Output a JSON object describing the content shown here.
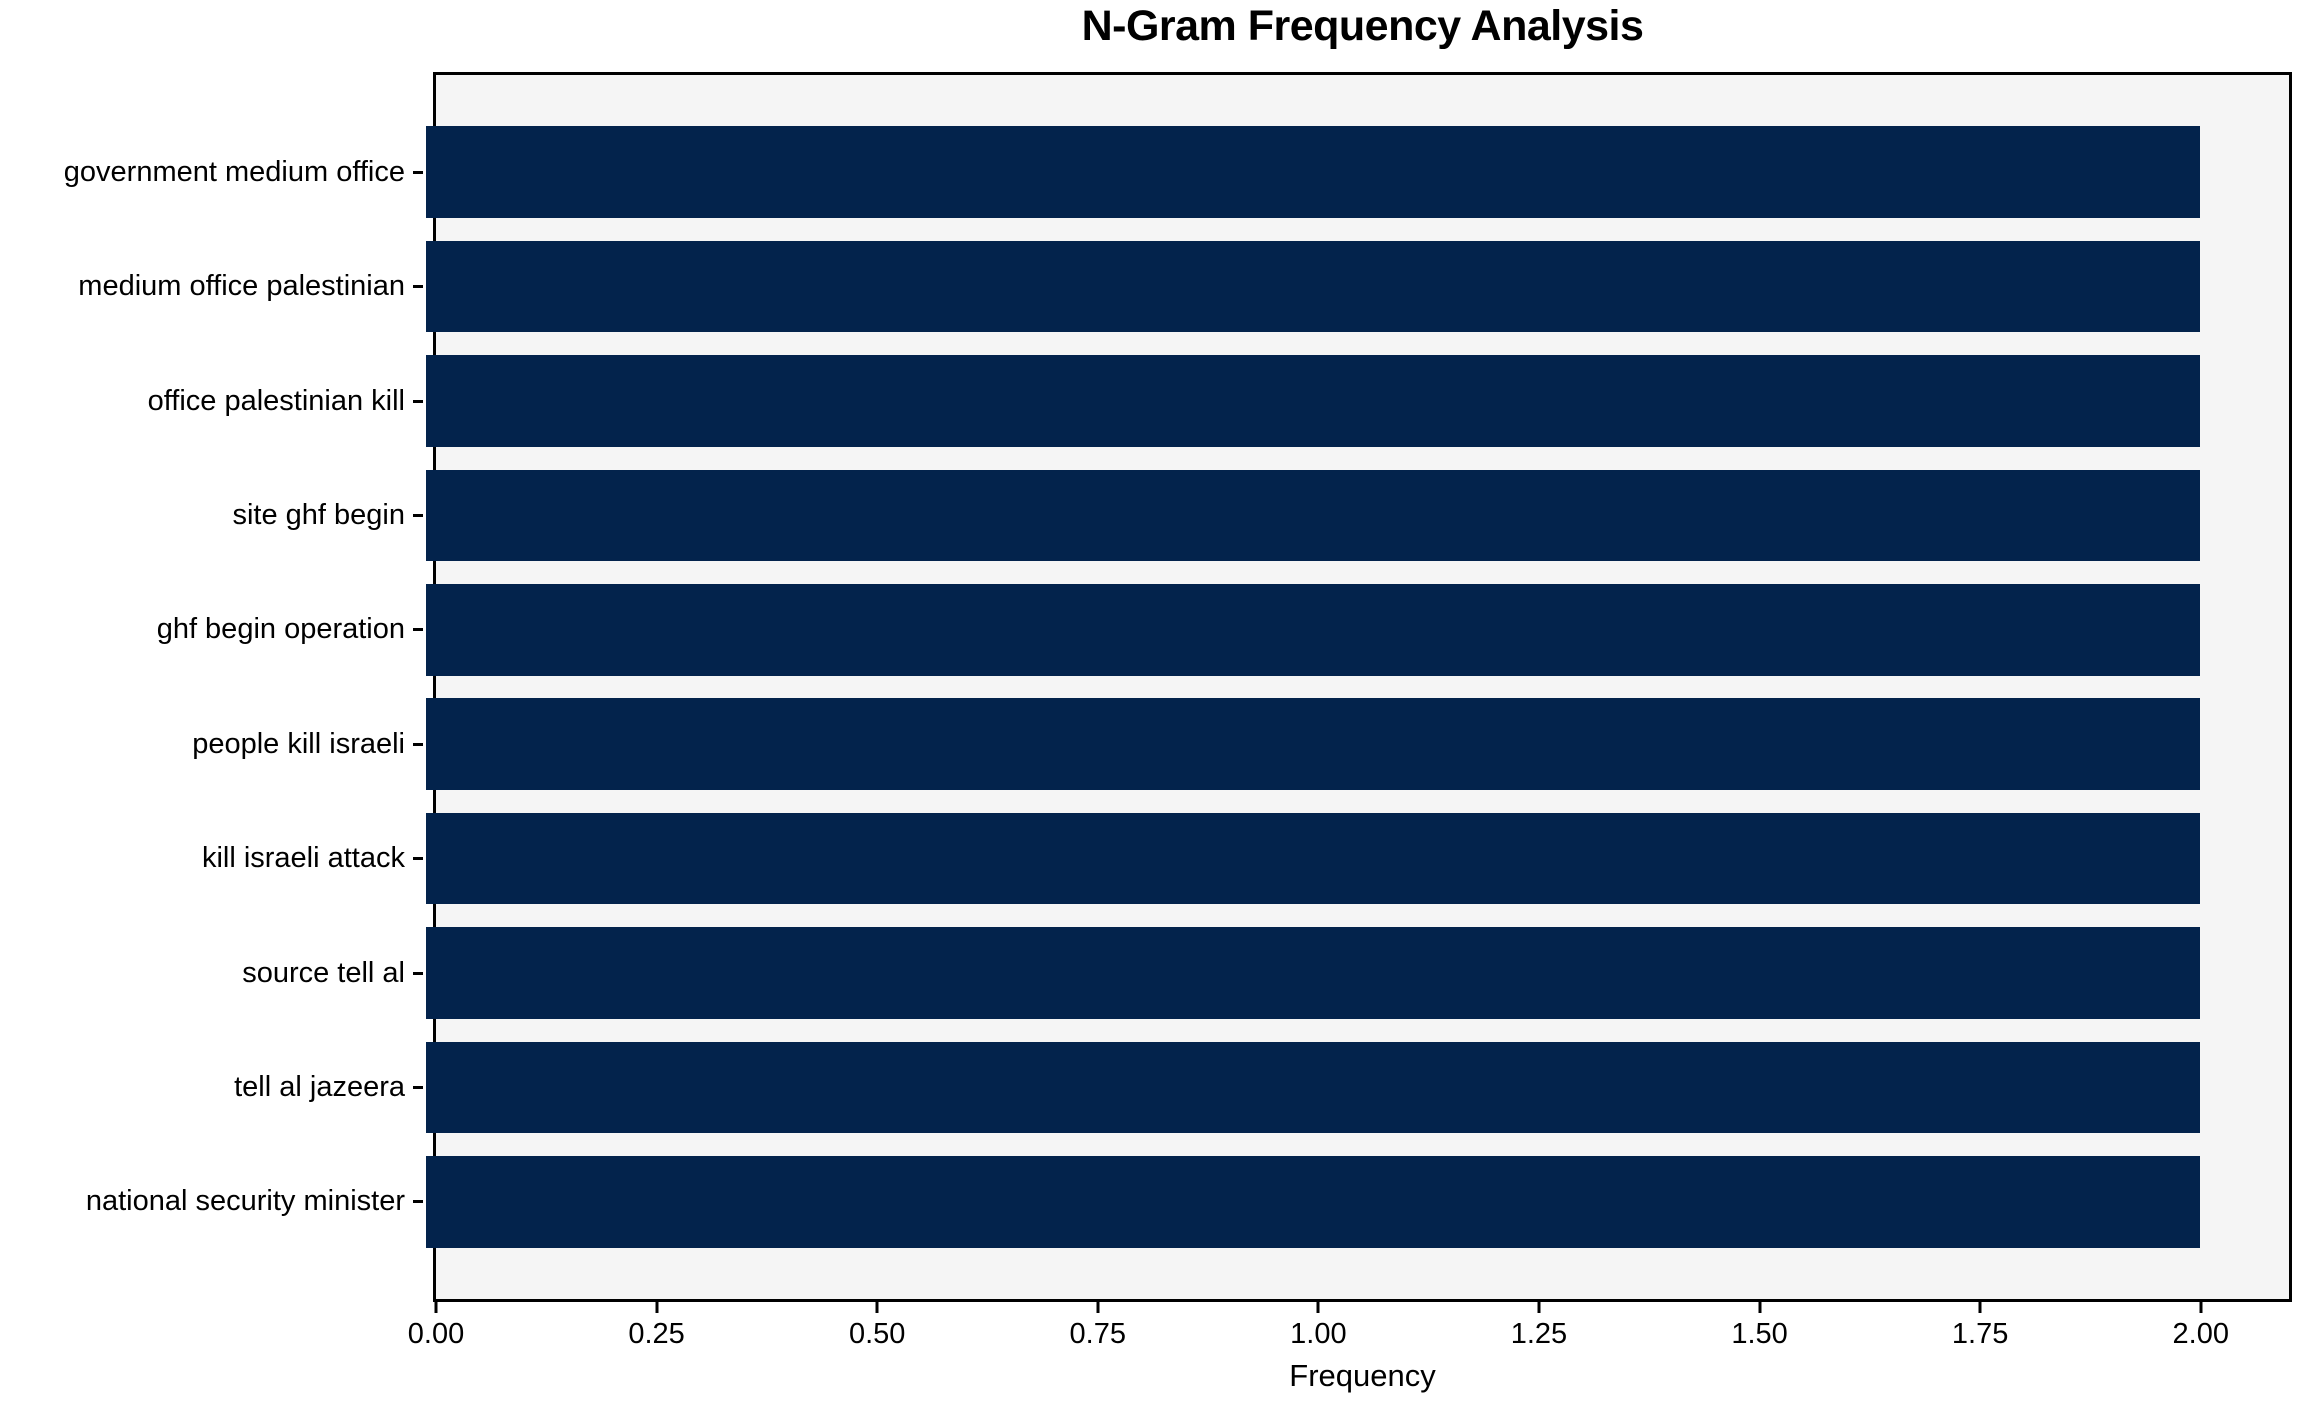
{
  "chart_data": {
    "type": "bar",
    "orientation": "horizontal",
    "title": "N-Gram Frequency Analysis",
    "xlabel": "Frequency",
    "ylabel": "",
    "categories": [
      "government medium office",
      "medium office palestinian",
      "office palestinian kill",
      "site ghf begin",
      "ghf begin operation",
      "people kill israeli",
      "kill israeli attack",
      "source tell al",
      "tell al jazeera",
      "national security minister"
    ],
    "values": [
      2,
      2,
      2,
      2,
      2,
      2,
      2,
      2,
      2,
      2
    ],
    "xtick_values": [
      0,
      0.25,
      0.5,
      0.75,
      1.0,
      1.25,
      1.5,
      1.75,
      2.0
    ],
    "xtick_labels": [
      "0.00",
      "0.25",
      "0.50",
      "0.75",
      "1.00",
      "1.25",
      "1.50",
      "1.75",
      "2.00"
    ],
    "xlim": [
      0,
      2.1
    ],
    "grid": false,
    "legend": "none",
    "colors": {
      "bar": "#03234c",
      "plot_background": "#f5f5f5",
      "figure_background": "#ffffff",
      "spine": "#000000",
      "text": "#000000"
    }
  }
}
